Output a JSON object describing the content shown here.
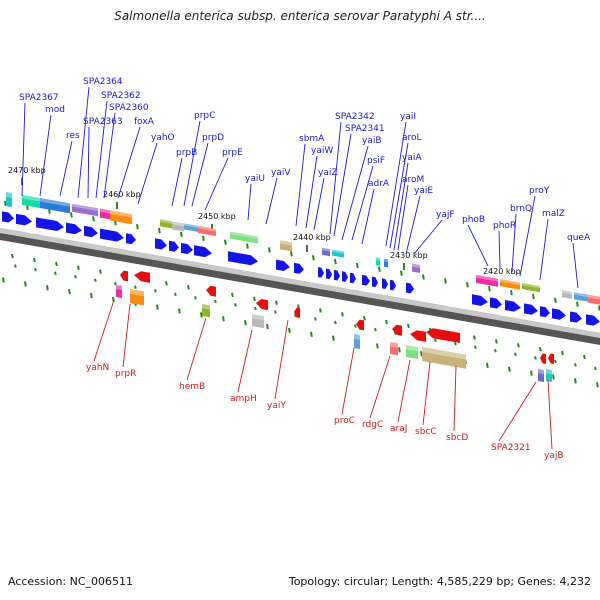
{
  "title": "Salmonella enterica subsp. enterica serovar Paratyphi A str....",
  "footer": {
    "accession": "Accession: NC_006511",
    "stats": "Topology: circular; Length: 4,585,229 bp; Genes: 4,232"
  },
  "colors": {
    "top_label": "#1a1ad0",
    "bottom_label": "#d01a1a",
    "arrow_blue": "#1414e6",
    "arrow_red": "#e60f0f",
    "tick": "#1e8c1e",
    "backbone": "#777777"
  },
  "kbp_ticks": [
    "2470 kbp",
    "2460 kbp",
    "2450 kbp",
    "2440 kbp",
    "2430 kbp",
    "2420 kbp"
  ],
  "top_genes": [
    "SPA2367",
    "mod",
    "res",
    "SPA2364",
    "SPA2363",
    "SPA2362",
    "SPA2360",
    "foxA",
    "yahO",
    "prpB",
    "prpC",
    "prpD",
    "prpE",
    "yaiU",
    "yaiV",
    "sbmA",
    "yaiW",
    "yaiZ",
    "SPA2342",
    "SPA2341",
    "yaiB",
    "psiF",
    "adrA",
    "yaiI",
    "aroL",
    "yaiA",
    "aroM",
    "yaiE",
    "yajF",
    "phoB",
    "phoR",
    "brnQ",
    "proY",
    "malZ",
    "queA"
  ],
  "bottom_genes": [
    "yahN",
    "prpR",
    "hemB",
    "ampH",
    "yaiY",
    "proC",
    "rdgC",
    "araJ",
    "sbcC",
    "sbcD",
    "SPA2321",
    "yajB"
  ]
}
